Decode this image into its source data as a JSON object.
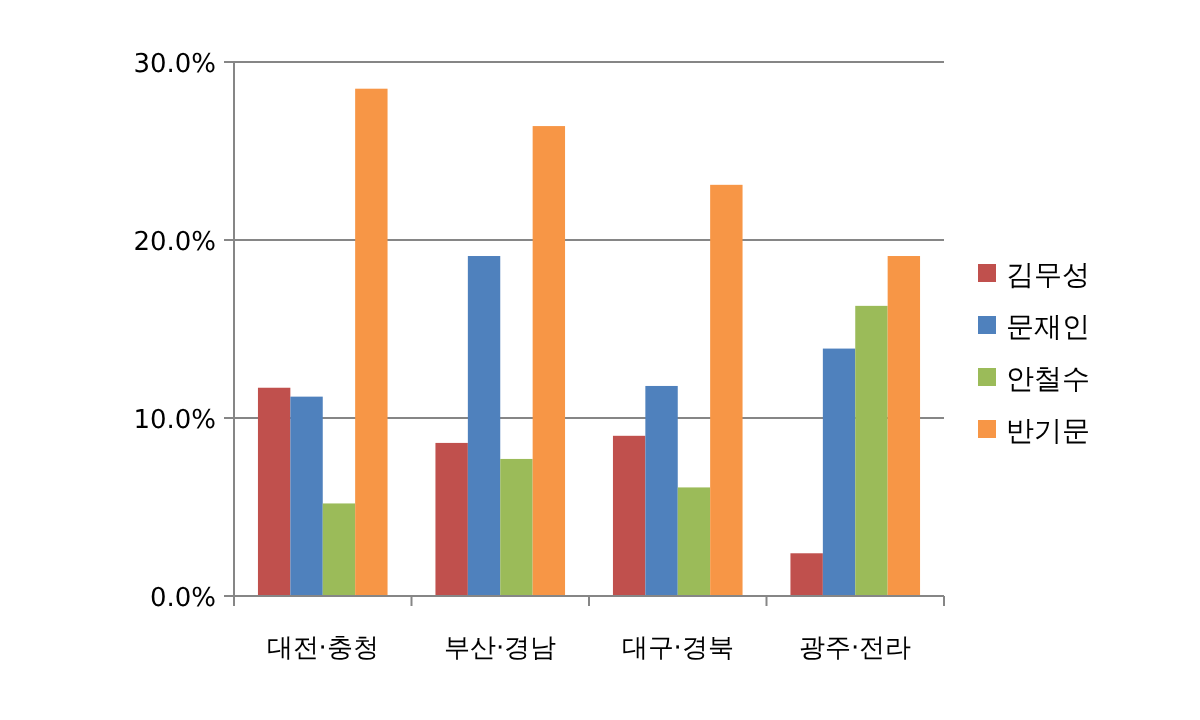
{
  "chart_data": {
    "type": "bar",
    "categories": [
      "대전·충청",
      "부산·경남",
      "대구·경북",
      "광주·전라"
    ],
    "series": [
      {
        "name": "김무성",
        "color": "#c0504d",
        "values": [
          11.7,
          8.6,
          9.0,
          2.4
        ]
      },
      {
        "name": "문재인",
        "color": "#4f81bd",
        "values": [
          11.2,
          19.1,
          11.8,
          13.9
        ]
      },
      {
        "name": "안철수",
        "color": "#9bbb59",
        "values": [
          5.2,
          7.7,
          6.1,
          16.3
        ]
      },
      {
        "name": "반기문",
        "color": "#f79646",
        "values": [
          28.5,
          26.4,
          23.1,
          19.1
        ]
      }
    ],
    "ylim": [
      0,
      30
    ],
    "yticks": [
      {
        "value": 0,
        "label": "0.0%"
      },
      {
        "value": 10,
        "label": "10.0%"
      },
      {
        "value": 20,
        "label": "20.0%"
      },
      {
        "value": 30,
        "label": "30.0%"
      }
    ],
    "grid": "y",
    "legend": "right"
  }
}
